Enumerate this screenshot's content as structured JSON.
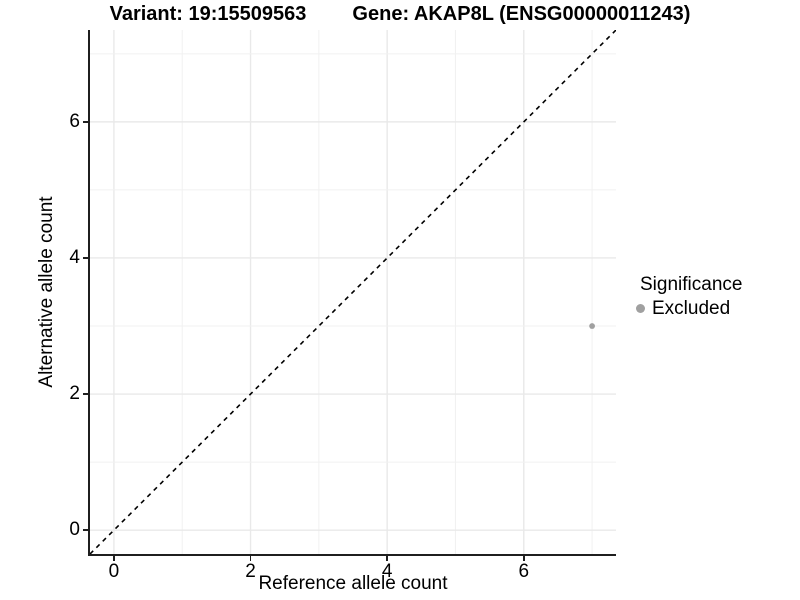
{
  "title": {
    "part1": "Variant: 19:15509563",
    "part2": "Gene: AKAP8L (ENSG00000011243)"
  },
  "legend": {
    "title": "Significance",
    "items": [
      {
        "label": "Excluded",
        "color": "#a0a0a0"
      }
    ]
  },
  "chart_data": {
    "type": "scatter",
    "title": "Variant: 19:15509563    Gene: AKAP8L (ENSG00000011243)",
    "xlabel": "Reference allele count",
    "ylabel": "Alternative allele count",
    "xlim": [
      -0.35,
      7.35
    ],
    "ylim": [
      -0.35,
      7.35
    ],
    "xticks": [
      0,
      2,
      4,
      6
    ],
    "yticks": [
      0,
      2,
      4,
      6
    ],
    "grid": {
      "major_every": 2,
      "minor_every": 1,
      "major_color": "#e9e9e9",
      "minor_color": "#f1f1f1"
    },
    "reference_line": {
      "style": "dashed",
      "slope": 1,
      "intercept": 0,
      "color": "#000000"
    },
    "series": [
      {
        "name": "Excluded",
        "color": "#a0a0a0",
        "points": [
          [
            7,
            3
          ]
        ]
      }
    ],
    "legend_position": "right"
  }
}
